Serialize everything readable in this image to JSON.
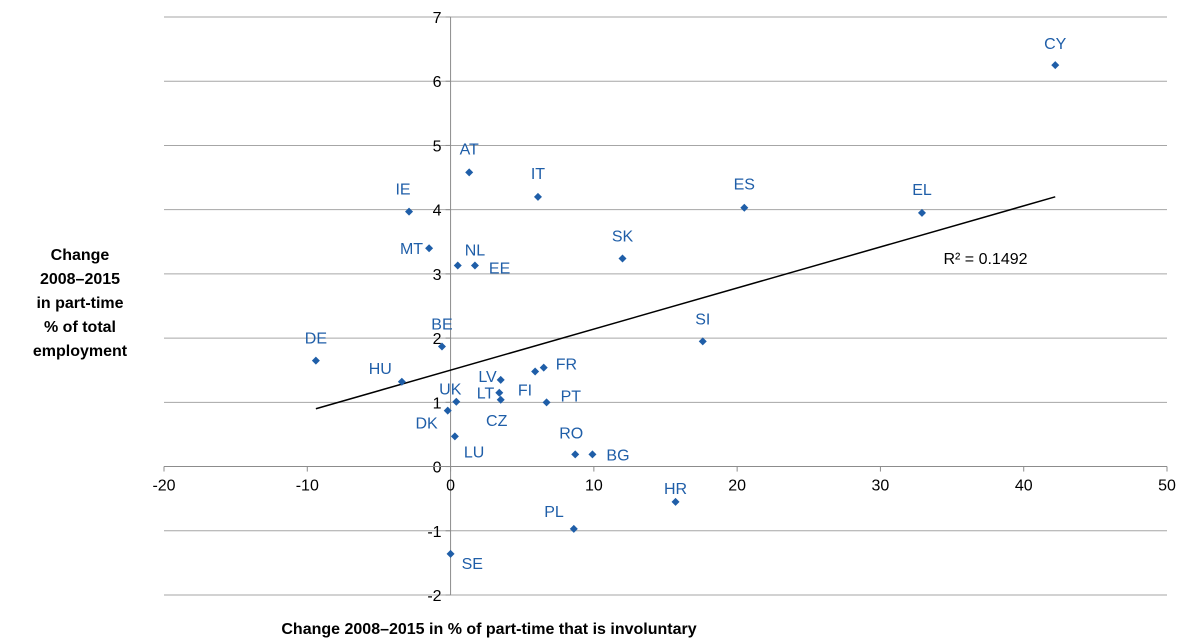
{
  "chart_data": {
    "type": "scatter",
    "xlabel": "Change 2008–2015 in % of part-time that is involuntary",
    "ylabel_lines": [
      "Change",
      "2008–2015",
      "in part-time",
      "% of total",
      "employment"
    ],
    "xlim": [
      -20,
      50
    ],
    "ylim": [
      -2,
      7
    ],
    "x_ticks": [
      -20,
      -10,
      0,
      10,
      20,
      30,
      40,
      50
    ],
    "y_ticks": [
      -2,
      -1,
      0,
      1,
      2,
      3,
      4,
      5,
      6,
      7
    ],
    "grid": "horizontal",
    "marker_color": "#1f5ea8",
    "points": [
      {
        "label": "CY",
        "x": 42.2,
        "y": 6.25
      },
      {
        "label": "AT",
        "x": 1.3,
        "y": 4.58
      },
      {
        "label": "IT",
        "x": 6.1,
        "y": 4.2
      },
      {
        "label": "ES",
        "x": 20.5,
        "y": 4.03
      },
      {
        "label": "EL",
        "x": 32.9,
        "y": 3.95
      },
      {
        "label": "IE",
        "x": -2.9,
        "y": 3.97
      },
      {
        "label": "MT",
        "x": -1.5,
        "y": 3.4
      },
      {
        "label": "NL",
        "x": 0.5,
        "y": 3.13
      },
      {
        "label": "EE",
        "x": 1.7,
        "y": 3.13
      },
      {
        "label": "SK",
        "x": 12.0,
        "y": 3.24
      },
      {
        "label": "SI",
        "x": 17.6,
        "y": 1.95
      },
      {
        "label": "DE",
        "x": -9.4,
        "y": 1.65
      },
      {
        "label": "BE",
        "x": -0.6,
        "y": 1.87
      },
      {
        "label": "HU",
        "x": -3.4,
        "y": 1.32
      },
      {
        "label": "FR",
        "x": 6.5,
        "y": 1.54
      },
      {
        "label": "LV",
        "x": 3.5,
        "y": 1.35
      },
      {
        "label": "FI",
        "x": 5.9,
        "y": 1.48
      },
      {
        "label": "UK",
        "x": 0.4,
        "y": 1.01
      },
      {
        "label": "LT",
        "x": 3.4,
        "y": 1.15
      },
      {
        "label": "CZ",
        "x": 3.5,
        "y": 1.04
      },
      {
        "label": "PT",
        "x": 6.7,
        "y": 1.0
      },
      {
        "label": "DK",
        "x": -0.2,
        "y": 0.87
      },
      {
        "label": "LU",
        "x": 0.3,
        "y": 0.47
      },
      {
        "label": "RO",
        "x": 8.7,
        "y": 0.19
      },
      {
        "label": "BG",
        "x": 9.9,
        "y": 0.19
      },
      {
        "label": "HR",
        "x": 15.7,
        "y": -0.55
      },
      {
        "label": "PL",
        "x": 8.6,
        "y": -0.97
      },
      {
        "label": "SE",
        "x": 0.0,
        "y": -1.36
      }
    ],
    "trendline": {
      "x": [
        -9.4,
        42.2
      ],
      "y": [
        0.9,
        4.2
      ]
    },
    "r2_label": "R² = 0.1492",
    "r2_anchor": {
      "x": 34.4,
      "y": 3.25
    }
  }
}
